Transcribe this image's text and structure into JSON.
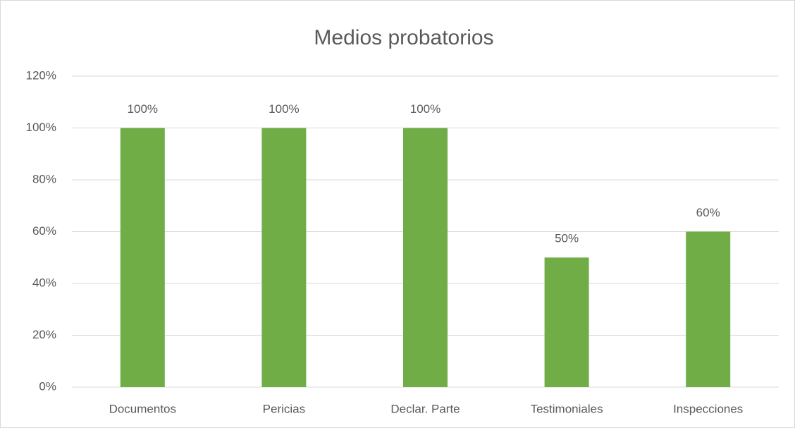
{
  "chart_data": {
    "type": "bar",
    "title": "Medios probatorios",
    "categories": [
      "Documentos",
      "Pericias",
      "Declar. Parte",
      "Testimoniales",
      "Inspecciones"
    ],
    "values": [
      100,
      100,
      100,
      50,
      60
    ],
    "value_labels": [
      "100%",
      "100%",
      "100%",
      "50%",
      "60%"
    ],
    "color": "#70ad47",
    "ylim": [
      0,
      120
    ],
    "yticks": [
      {
        "value": 0,
        "label": "0%"
      },
      {
        "value": 20,
        "label": "20%"
      },
      {
        "value": 40,
        "label": "40%"
      },
      {
        "value": 60,
        "label": "60%"
      },
      {
        "value": 80,
        "label": "80%"
      },
      {
        "value": 100,
        "label": "100%"
      },
      {
        "value": 120,
        "label": "120%"
      }
    ],
    "grid": true
  }
}
